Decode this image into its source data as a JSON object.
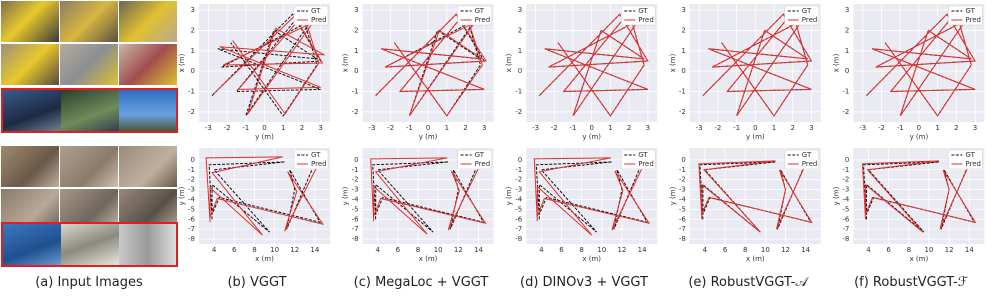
{
  "captions": [
    "(a) Input Images",
    "(b) VGGT",
    "(c) MegaLoc + VGGT",
    "(d) DINOv3 + VGGT",
    "(e) RobustVGGT-𝒜",
    "(f) RobustVGGT-ℱ"
  ],
  "chart_data": [
    {
      "type": "line",
      "xlabel": "y (m)",
      "ylabel": "x (m)",
      "xlim": [
        -3.5,
        3.5
      ],
      "ylim": [
        -2.5,
        3.3
      ],
      "xticks": [
        -3,
        -2,
        -1,
        0,
        1,
        2,
        3
      ],
      "yticks": [
        -2,
        -1,
        0,
        1,
        2,
        3
      ],
      "grid": true,
      "legend": "upper right",
      "series": [
        {
          "name": "GT",
          "color": "#111111",
          "dashed": true,
          "x": [
            -2.8,
            1.5,
            3.0,
            -2.3,
            2.5,
            -1.0,
            0.5,
            2.8,
            -2.5,
            3.0,
            -1.5,
            2.0,
            2.8,
            1.0,
            -1.8
          ],
          "values": [
            -1.2,
            2.8,
            0.5,
            0.2,
            2.5,
            -2.2,
            2.0,
            0.6,
            1.1,
            -0.9,
            -1.0,
            2.9,
            0.3,
            -2.2,
            1.4
          ]
        },
        {
          "name": "Pred",
          "color": "#e03030",
          "x": [
            -2.7,
            1.6,
            3.1,
            -2.2,
            2.6,
            -0.9,
            0.6,
            3.2,
            -2.4,
            3.0,
            -1.4,
            2.1,
            2.9,
            1.1,
            -1.7
          ],
          "values": [
            -1.1,
            2.7,
            0.4,
            0.3,
            2.4,
            -2.1,
            2.1,
            0.8,
            1.2,
            -0.8,
            -0.9,
            2.8,
            0.4,
            -2.1,
            1.5
          ]
        }
      ]
    },
    {
      "type": "line",
      "xlabel": "y (m)",
      "ylabel": "x (m)",
      "xlim": [
        -3.5,
        3.5
      ],
      "ylim": [
        -2.5,
        3.3
      ],
      "xticks": [
        -3,
        -2,
        -1,
        0,
        1,
        2,
        3
      ],
      "yticks": [
        -2,
        -1,
        0,
        1,
        2,
        3
      ],
      "grid": true,
      "legend": "upper right",
      "series": [
        {
          "name": "GT",
          "color": "#111111",
          "dashed": true,
          "x": [
            -2.8,
            1.5,
            3.0,
            -2.3,
            2.5,
            -1.0,
            0.5,
            2.8,
            -2.5,
            3.0,
            -1.5,
            2.0,
            2.8,
            1.0,
            -1.8
          ],
          "values": [
            -1.2,
            2.8,
            0.5,
            0.2,
            2.5,
            -2.2,
            2.0,
            0.6,
            1.1,
            -0.9,
            -1.0,
            2.9,
            0.3,
            -2.2,
            1.4
          ]
        },
        {
          "name": "Pred",
          "color": "#e03030",
          "x": [
            -2.8,
            1.5,
            3.1,
            -2.3,
            2.5,
            -1.0,
            0.6,
            2.9,
            -2.5,
            3.0,
            -1.5,
            2.0,
            2.9,
            1.0,
            -1.8
          ],
          "values": [
            -1.2,
            2.8,
            0.5,
            0.2,
            2.4,
            -2.2,
            2.0,
            0.6,
            1.1,
            -0.9,
            -1.0,
            2.9,
            0.3,
            -2.2,
            1.4
          ]
        }
      ]
    },
    {
      "type": "line",
      "xlabel": "y (m)",
      "ylabel": "x (m)",
      "xlim": [
        -3.5,
        3.5
      ],
      "ylim": [
        -2.5,
        3.3
      ],
      "xticks": [
        -3,
        -2,
        -1,
        0,
        1,
        2,
        3
      ],
      "yticks": [
        -2,
        -1,
        0,
        1,
        2,
        3
      ],
      "grid": true,
      "legend": "upper right",
      "series": [
        {
          "name": "GT",
          "color": "#111111",
          "dashed": true,
          "x": [
            -2.8,
            1.5,
            3.0,
            -2.3,
            2.5,
            -1.0,
            0.5,
            2.8,
            -2.5,
            3.0,
            -1.5,
            2.0,
            2.8,
            1.0,
            -1.8
          ],
          "values": [
            -1.2,
            2.8,
            0.5,
            0.2,
            2.5,
            -2.2,
            2.0,
            0.6,
            1.1,
            -0.9,
            -1.0,
            2.9,
            0.3,
            -2.2,
            1.4
          ]
        },
        {
          "name": "Pred",
          "color": "#e03030",
          "x": [
            -2.8,
            1.5,
            3.0,
            -2.3,
            2.5,
            -1.0,
            0.5,
            2.8,
            -2.5,
            3.0,
            -1.5,
            2.0,
            2.8,
            1.0,
            -1.8
          ],
          "values": [
            -1.2,
            2.8,
            0.5,
            0.2,
            2.5,
            -2.2,
            2.0,
            0.6,
            1.1,
            -0.9,
            -1.0,
            2.9,
            0.3,
            -2.2,
            1.4
          ]
        }
      ]
    },
    {
      "type": "line",
      "xlabel": "y (m)",
      "ylabel": "x (m)",
      "xlim": [
        -3.5,
        3.5
      ],
      "ylim": [
        -2.5,
        3.3
      ],
      "xticks": [
        -3,
        -2,
        -1,
        0,
        1,
        2,
        3
      ],
      "yticks": [
        -2,
        -1,
        0,
        1,
        2,
        3
      ],
      "grid": true,
      "legend": "upper right",
      "series": [
        {
          "name": "GT",
          "color": "#111111",
          "dashed": true,
          "x": [
            -2.8,
            1.5,
            3.0,
            -2.3,
            2.5,
            -1.0,
            0.5,
            2.8,
            -2.5,
            3.0,
            -1.5,
            2.0,
            2.8,
            1.0,
            -1.8
          ],
          "values": [
            -1.2,
            2.8,
            0.5,
            0.2,
            2.5,
            -2.2,
            2.0,
            0.6,
            1.1,
            -0.9,
            -1.0,
            2.9,
            0.3,
            -2.2,
            1.4
          ]
        },
        {
          "name": "Pred",
          "color": "#e03030",
          "x": [
            -2.8,
            1.5,
            3.0,
            -2.3,
            2.5,
            -1.0,
            0.5,
            2.8,
            -2.5,
            3.0,
            -1.5,
            2.0,
            2.8,
            1.0,
            -1.8
          ],
          "values": [
            -1.2,
            2.8,
            0.5,
            0.2,
            2.5,
            -2.2,
            2.0,
            0.6,
            1.1,
            -0.9,
            -1.0,
            2.9,
            0.3,
            -2.2,
            1.4
          ]
        }
      ]
    },
    {
      "type": "line",
      "xlabel": "y (m)",
      "ylabel": "x (m)",
      "xlim": [
        -3.5,
        3.5
      ],
      "ylim": [
        -2.5,
        3.3
      ],
      "xticks": [
        -3,
        -2,
        -1,
        0,
        1,
        2,
        3
      ],
      "yticks": [
        -2,
        -1,
        0,
        1,
        2,
        3
      ],
      "grid": true,
      "legend": "upper right",
      "series": [
        {
          "name": "GT",
          "color": "#111111",
          "dashed": true,
          "x": [
            -2.8,
            1.5,
            3.0,
            -2.3,
            2.5,
            -1.0,
            0.5,
            2.8,
            -2.5,
            3.0,
            -1.5,
            2.0,
            2.8,
            1.0,
            -1.8
          ],
          "values": [
            -1.2,
            2.8,
            0.5,
            0.2,
            2.5,
            -2.2,
            2.0,
            0.6,
            1.1,
            -0.9,
            -1.0,
            2.9,
            0.3,
            -2.2,
            1.4
          ]
        },
        {
          "name": "Pred",
          "color": "#e03030",
          "x": [
            -2.8,
            1.5,
            3.0,
            -2.3,
            2.5,
            -1.0,
            0.5,
            2.8,
            -2.5,
            3.0,
            -1.5,
            2.0,
            2.8,
            1.0,
            -1.8
          ],
          "values": [
            -1.2,
            2.8,
            0.5,
            0.2,
            2.5,
            -2.2,
            2.0,
            0.6,
            1.1,
            -0.9,
            -1.0,
            2.9,
            0.3,
            -2.2,
            1.4
          ]
        }
      ]
    },
    {
      "type": "line",
      "xlabel": "x (m)",
      "ylabel": "y (m)",
      "xlim": [
        2.5,
        15.5
      ],
      "ylim": [
        -8.5,
        1.2
      ],
      "xticks": [
        4,
        6,
        8,
        10,
        12,
        14
      ],
      "yticks": [
        -8,
        -7,
        -6,
        -5,
        -4,
        -3,
        -2,
        -1,
        0
      ],
      "grid": true,
      "legend": "upper right",
      "series": [
        {
          "name": "GT",
          "color": "#111111",
          "dashed": true,
          "x": [
            3.8,
            3.5,
            11.0,
            4.0,
            9.5,
            3.8,
            3.8,
            4.5,
            14.5,
            11.5,
            12.0,
            11.2,
            14.0
          ],
          "values": [
            -6.0,
            -0.5,
            -0.2,
            -1.0,
            -7.3,
            -2.5,
            -5.5,
            -3.8,
            -6.3,
            -1.0,
            -3.0,
            -7.0,
            -0.3
          ]
        },
        {
          "name": "Pred",
          "color": "#e03030",
          "x": [
            3.6,
            3.2,
            10.8,
            3.8,
            8.8,
            3.6,
            3.6,
            4.3,
            14.8,
            11.3,
            12.2,
            11.0,
            14.8
          ],
          "values": [
            -6.3,
            0.2,
            0.3,
            -1.3,
            -7.6,
            -2.8,
            -5.8,
            -3.9,
            -6.5,
            -1.2,
            -3.2,
            -7.2,
            0.5
          ]
        }
      ]
    },
    {
      "type": "line",
      "xlabel": "x (m)",
      "ylabel": "y (m)",
      "xlim": [
        2.5,
        15.5
      ],
      "ylim": [
        -8.5,
        1.2
      ],
      "xticks": [
        4,
        6,
        8,
        10,
        12,
        14
      ],
      "yticks": [
        -8,
        -7,
        -6,
        -5,
        -4,
        -3,
        -2,
        -1,
        0
      ],
      "grid": true,
      "legend": "upper right",
      "series": [
        {
          "name": "GT",
          "color": "#111111",
          "dashed": true,
          "x": [
            3.8,
            3.5,
            11.0,
            4.0,
            9.5,
            3.8,
            3.8,
            4.5,
            14.5,
            11.5,
            12.0,
            11.2,
            14.0
          ],
          "values": [
            -6.0,
            -0.5,
            -0.2,
            -1.0,
            -7.3,
            -2.5,
            -5.5,
            -3.8,
            -6.3,
            -1.0,
            -3.0,
            -7.0,
            -0.3
          ]
        },
        {
          "name": "Pred",
          "color": "#e03030",
          "x": [
            3.6,
            3.3,
            10.9,
            3.8,
            8.9,
            3.6,
            3.6,
            4.3,
            14.7,
            11.3,
            12.1,
            11.0,
            14.6
          ],
          "values": [
            -6.2,
            0.1,
            0.2,
            -1.2,
            -7.5,
            -2.7,
            -5.7,
            -3.9,
            -6.4,
            -1.1,
            -3.1,
            -7.1,
            0.4
          ]
        }
      ]
    },
    {
      "type": "line",
      "xlabel": "x (m)",
      "ylabel": "y (m)",
      "xlim": [
        2.5,
        15.5
      ],
      "ylim": [
        -8.5,
        1.2
      ],
      "xticks": [
        4,
        6,
        8,
        10,
        12,
        14
      ],
      "yticks": [
        -8,
        -7,
        -6,
        -5,
        -4,
        -3,
        -2,
        -1,
        0
      ],
      "grid": true,
      "legend": "upper right",
      "series": [
        {
          "name": "GT",
          "color": "#111111",
          "dashed": true,
          "x": [
            3.8,
            3.5,
            11.0,
            4.0,
            9.5,
            3.8,
            3.8,
            4.5,
            14.5,
            11.5,
            12.0,
            11.2,
            14.0
          ],
          "values": [
            -6.0,
            -0.5,
            -0.2,
            -1.0,
            -7.3,
            -2.5,
            -5.5,
            -3.8,
            -6.3,
            -1.0,
            -3.0,
            -7.0,
            -0.3
          ]
        },
        {
          "name": "Pred",
          "color": "#e03030",
          "x": [
            3.6,
            3.3,
            10.9,
            3.8,
            9.0,
            3.6,
            3.6,
            4.3,
            14.7,
            11.3,
            12.1,
            11.0,
            14.6
          ],
          "values": [
            -6.2,
            0.1,
            0.2,
            -1.2,
            -7.6,
            -2.7,
            -5.7,
            -3.9,
            -6.4,
            -1.1,
            -3.1,
            -7.1,
            0.4
          ]
        }
      ]
    },
    {
      "type": "line",
      "xlabel": "x (m)",
      "ylabel": "y (m)",
      "xlim": [
        2.5,
        15.5
      ],
      "ylim": [
        -8.5,
        1.2
      ],
      "xticks": [
        4,
        6,
        8,
        10,
        12,
        14
      ],
      "yticks": [
        -8,
        -7,
        -6,
        -5,
        -4,
        -3,
        -2,
        -1,
        0
      ],
      "grid": true,
      "legend": "upper right",
      "series": [
        {
          "name": "GT",
          "color": "#111111",
          "dashed": true,
          "x": [
            3.8,
            3.5,
            11.0,
            4.0,
            9.5,
            3.8,
            3.8,
            4.5,
            14.5,
            11.5,
            12.0,
            11.2,
            14.0
          ],
          "values": [
            -6.0,
            -0.5,
            -0.2,
            -1.0,
            -7.3,
            -2.5,
            -5.5,
            -3.8,
            -6.3,
            -1.0,
            -3.0,
            -7.0,
            -0.3
          ]
        },
        {
          "name": "Pred",
          "color": "#e03030",
          "x": [
            3.7,
            3.4,
            11.0,
            3.9,
            9.5,
            3.7,
            3.7,
            4.4,
            14.6,
            11.4,
            12.0,
            11.1,
            14.1
          ],
          "values": [
            -6.0,
            -0.4,
            -0.1,
            -1.0,
            -7.3,
            -2.5,
            -5.5,
            -3.8,
            -6.3,
            -1.0,
            -3.0,
            -7.0,
            -0.2
          ]
        }
      ]
    },
    {
      "type": "line",
      "xlabel": "x (m)",
      "ylabel": "y (m)",
      "xlim": [
        2.5,
        15.5
      ],
      "ylim": [
        -8.5,
        1.2
      ],
      "xticks": [
        4,
        6,
        8,
        10,
        12,
        14
      ],
      "yticks": [
        -8,
        -7,
        -6,
        -5,
        -4,
        -3,
        -2,
        -1,
        0
      ],
      "grid": true,
      "legend": "upper right",
      "series": [
        {
          "name": "GT",
          "color": "#111111",
          "dashed": true,
          "x": [
            3.8,
            3.5,
            11.0,
            4.0,
            9.5,
            3.8,
            3.8,
            4.5,
            14.5,
            11.5,
            12.0,
            11.2,
            14.0
          ],
          "values": [
            -6.0,
            -0.5,
            -0.2,
            -1.0,
            -7.3,
            -2.5,
            -5.5,
            -3.8,
            -6.3,
            -1.0,
            -3.0,
            -7.0,
            -0.3
          ]
        },
        {
          "name": "Pred",
          "color": "#e03030",
          "x": [
            3.7,
            3.4,
            11.0,
            3.9,
            9.4,
            3.7,
            3.7,
            4.4,
            14.6,
            11.4,
            12.0,
            11.1,
            14.1
          ],
          "values": [
            -6.0,
            -0.4,
            -0.1,
            -1.0,
            -7.3,
            -2.5,
            -5.5,
            -3.8,
            -6.3,
            -1.0,
            -3.0,
            -7.0,
            -0.2
          ]
        }
      ]
    }
  ]
}
